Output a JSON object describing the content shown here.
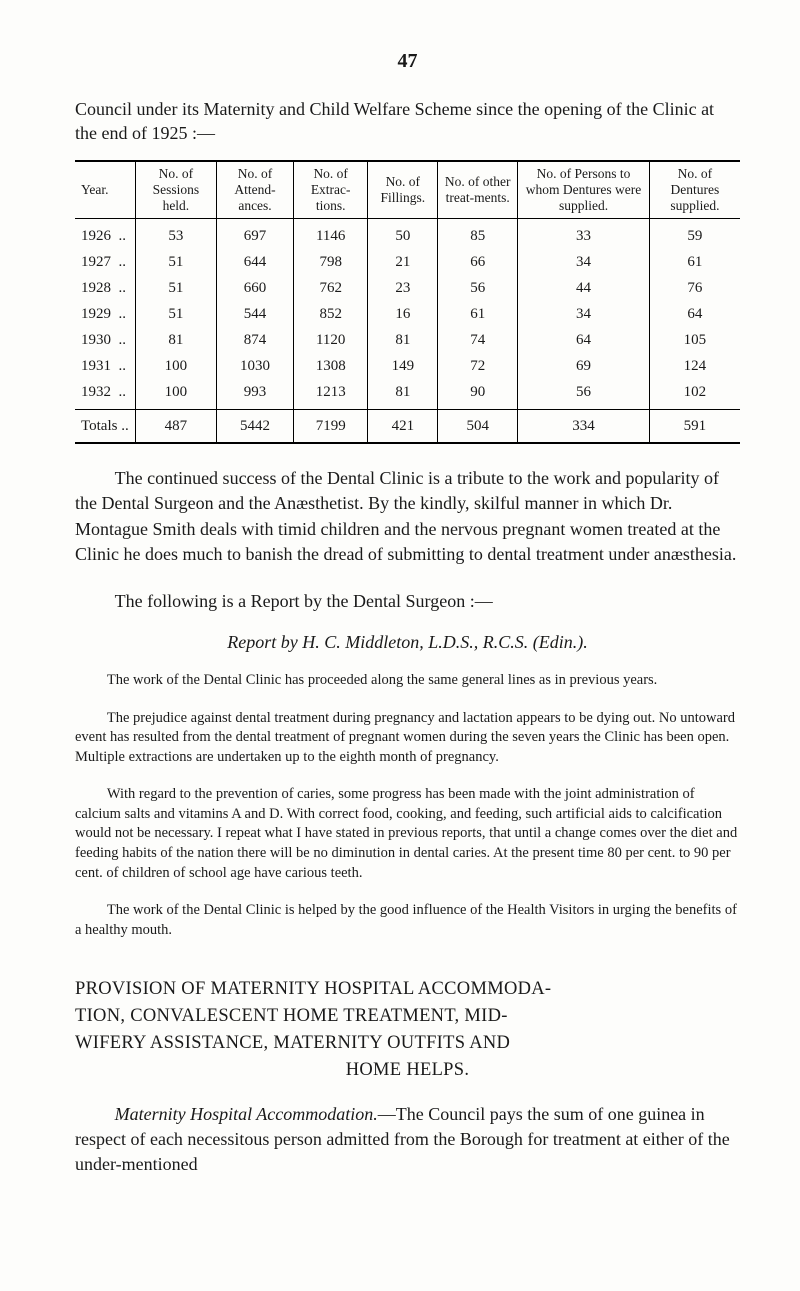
{
  "pageNumber": "47",
  "intro": "Council under its Maternity and Child Welfare Scheme since the opening of the Clinic at the end of 1925 :—",
  "table": {
    "headers": [
      "Year.",
      "No. of Sessions held.",
      "No. of Attend-ances.",
      "No. of Extrac-tions.",
      "No. of Fillings.",
      "No. of other treat-ments.",
      "No. of Persons to whom Dentures were supplied.",
      "No. of Dentures supplied."
    ],
    "rows": [
      [
        "1926  ..",
        "53",
        "697",
        "1146",
        "50",
        "85",
        "33",
        "59"
      ],
      [
        "1927  ..",
        "51",
        "644",
        "798",
        "21",
        "66",
        "34",
        "61"
      ],
      [
        "1928  ..",
        "51",
        "660",
        "762",
        "23",
        "56",
        "44",
        "76"
      ],
      [
        "1929  ..",
        "51",
        "544",
        "852",
        "16",
        "61",
        "34",
        "64"
      ],
      [
        "1930  ..",
        "81",
        "874",
        "1120",
        "81",
        "74",
        "64",
        "105"
      ],
      [
        "1931  ..",
        "100",
        "1030",
        "1308",
        "149",
        "72",
        "69",
        "124"
      ],
      [
        "1932  ..",
        "100",
        "993",
        "1213",
        "81",
        "90",
        "56",
        "102"
      ]
    ],
    "totals": [
      "Totals ..",
      "487",
      "5442",
      "7199",
      "421",
      "504",
      "334",
      "591"
    ]
  },
  "para1": "The continued success of the Dental Clinic is a tribute to the work and popularity of the Dental Surgeon and the Anæsthetist. By the kindly, skilful manner in which Dr. Montague Smith deals with timid children and the nervous pregnant women treated at the Clinic he does much to banish the dread of submitting to dental treatment under anæsthesia.",
  "para2": "The following is a Report by the Dental Surgeon :—",
  "reportTitle": "Report by H. C. Middleton, L.D.S., R.C.S. (Edin.).",
  "smallParas": [
    "The work of the Dental Clinic has proceeded along the same general lines as in previous years.",
    "The prejudice against dental treatment during pregnancy and lactation appears to be dying out. No untoward event has resulted from the dental treatment of pregnant women during the seven years the Clinic has been open. Multiple extractions are undertaken up to the eighth month of pregnancy.",
    "With regard to the prevention of caries, some progress has been made with the joint administration of calcium salts and vitamins A and D. With correct food, cooking, and feeding, such artificial aids to calcification would not be necessary. I repeat what I have stated in previous reports, that until a change comes over the diet and feeding habits of the nation there will be no diminution in dental caries. At the present time 80 per cent. to 90 per cent. of children of school age have carious teeth.",
    "The work of the Dental Clinic is helped by the good influence of the Health Visitors in urging the benefits of a healthy mouth."
  ],
  "sectionHeadingLines": [
    "PROVISION OF MATERNITY HOSPITAL ACCOMMODA-",
    "TION, CONVALESCENT HOME TREATMENT, MID-",
    "WIFERY ASSISTANCE, MATERNITY OUTFITS AND"
  ],
  "sectionHeadingCenter": "HOME HELPS.",
  "lastParaLead": "Maternity Hospital Accommodation.",
  "lastParaRest": "—The Council pays the sum of one guinea in respect of each necessitous person admitted from the Borough for treatment at either of the under-mentioned"
}
